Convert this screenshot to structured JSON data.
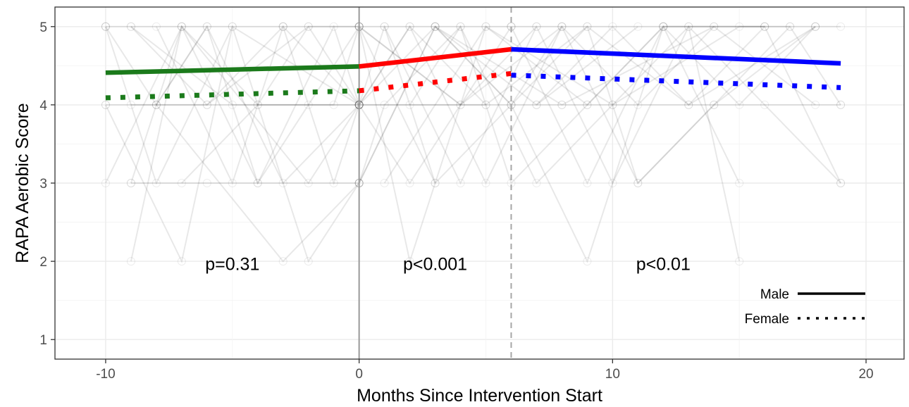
{
  "chart_data": {
    "type": "line",
    "xlabel": "Months Since Intervention Start",
    "ylabel": "RAPA Aerobic Score",
    "xlim": [
      -12,
      21.5
    ],
    "ylim": [
      0.75,
      5.25
    ],
    "x_ticks": [
      -10,
      0,
      10,
      20
    ],
    "x_tick_labels": [
      "-10",
      "0",
      "10",
      "20"
    ],
    "y_ticks": [
      1,
      2,
      3,
      4,
      5
    ],
    "y_tick_labels": [
      "1",
      "2",
      "3",
      "4",
      "5"
    ],
    "grid": true,
    "reference_lines": [
      {
        "x": 0,
        "style": "solid"
      },
      {
        "x": 6,
        "style": "dashed"
      }
    ],
    "series": [
      {
        "name": "Male",
        "segment": "pre",
        "color": "#1b7a1b",
        "style": "solid",
        "x": [
          -10,
          0
        ],
        "y": [
          4.41,
          4.49
        ]
      },
      {
        "name": "Male",
        "segment": "intervention",
        "color": "#ff0000",
        "style": "solid",
        "x": [
          0,
          6
        ],
        "y": [
          4.49,
          4.71
        ]
      },
      {
        "name": "Male",
        "segment": "post",
        "color": "#0000ff",
        "style": "solid",
        "x": [
          6,
          19
        ],
        "y": [
          4.71,
          4.53
        ]
      },
      {
        "name": "Female",
        "segment": "pre",
        "color": "#1b7a1b",
        "style": "dotted",
        "x": [
          -10,
          0
        ],
        "y": [
          4.09,
          4.18
        ]
      },
      {
        "name": "Female",
        "segment": "intervention",
        "color": "#ff0000",
        "style": "dotted",
        "x": [
          0,
          6
        ],
        "y": [
          4.18,
          4.4
        ]
      },
      {
        "name": "Female",
        "segment": "post",
        "color": "#0000ff",
        "style": "dotted",
        "x": [
          6,
          19
        ],
        "y": [
          4.38,
          4.22
        ]
      }
    ],
    "annotations": [
      {
        "text": "p=0.31",
        "x": -5,
        "y": 1.97
      },
      {
        "text": "p<0.001",
        "x": 3,
        "y": 1.97
      },
      {
        "text": "p<0.01",
        "x": 12,
        "y": 1.97
      }
    ],
    "legend": {
      "position": "bottom-right",
      "entries": [
        {
          "label": "Male",
          "style": "solid",
          "color": "#000000"
        },
        {
          "label": "Female",
          "style": "dotted",
          "color": "#000000"
        }
      ]
    },
    "background_trajectories": {
      "color": "#000000",
      "opacity": 0.09,
      "lines": [
        {
          "x": [
            -10,
            -3,
            0,
            6,
            16
          ],
          "y": [
            5,
            5,
            5,
            5,
            5
          ]
        },
        {
          "x": [
            -9,
            -2,
            0,
            8,
            19
          ],
          "y": [
            4,
            4,
            4,
            4,
            4
          ]
        },
        {
          "x": [
            -9,
            -6,
            0
          ],
          "y": [
            3,
            3,
            3
          ]
        },
        {
          "x": [
            -10,
            -7,
            -5,
            0
          ],
          "y": [
            4,
            2,
            5,
            4
          ]
        },
        {
          "x": [
            -9,
            -7,
            -4,
            0,
            3
          ],
          "y": [
            3,
            5,
            3,
            5,
            3
          ]
        },
        {
          "x": [
            -10,
            -8,
            -5,
            -2,
            0
          ],
          "y": [
            5,
            3,
            5,
            2,
            3
          ]
        },
        {
          "x": [
            -8,
            -6,
            -3,
            0,
            2,
            5
          ],
          "y": [
            4,
            5,
            3,
            4,
            5,
            4
          ]
        },
        {
          "x": [
            -9,
            -6,
            -3,
            -1,
            0
          ],
          "y": [
            5,
            4,
            5,
            3,
            4
          ]
        },
        {
          "x": [
            -10,
            -7,
            -4,
            -2,
            0
          ],
          "y": [
            3,
            5,
            4,
            5,
            5
          ]
        },
        {
          "x": [
            -9,
            -7,
            -2,
            0,
            2,
            6
          ],
          "y": [
            2,
            5,
            3,
            4,
            3,
            5
          ]
        },
        {
          "x": [
            -8,
            -5,
            -3,
            0,
            1,
            4,
            7
          ],
          "y": [
            5,
            3,
            5,
            4,
            5,
            3,
            5
          ]
        },
        {
          "x": [
            0,
            3,
            6,
            9,
            12,
            15
          ],
          "y": [
            3,
            5,
            4,
            2,
            5,
            3
          ]
        },
        {
          "x": [
            0,
            2,
            5,
            8,
            11,
            14,
            18
          ],
          "y": [
            4,
            5,
            3,
            5,
            4,
            5,
            4
          ]
        },
        {
          "x": [
            0,
            4,
            7,
            10,
            13,
            16,
            19
          ],
          "y": [
            5,
            4,
            5,
            3,
            5,
            4,
            3
          ]
        },
        {
          "x": [
            0,
            1,
            4,
            6,
            9,
            12,
            17
          ],
          "y": [
            3,
            4,
            5,
            3,
            4,
            5,
            5
          ]
        },
        {
          "x": [
            1,
            3,
            6,
            9,
            11,
            14,
            18
          ],
          "y": [
            5,
            3,
            4,
            5,
            3,
            4,
            5
          ]
        },
        {
          "x": [
            2,
            4,
            7,
            10,
            13,
            15
          ],
          "y": [
            4,
            5,
            3,
            4,
            5,
            2
          ]
        },
        {
          "x": [
            0,
            2,
            5,
            9,
            12,
            16
          ],
          "y": [
            5,
            2,
            5,
            4,
            5,
            5
          ]
        },
        {
          "x": [
            3,
            6,
            8,
            11,
            14,
            17,
            19
          ],
          "y": [
            5,
            4,
            5,
            3,
            4,
            5,
            4
          ]
        },
        {
          "x": [
            -10,
            -6,
            -2,
            0,
            3,
            7,
            11
          ],
          "y": [
            4,
            4,
            5,
            4,
            5,
            4,
            5
          ]
        },
        {
          "x": [
            -9,
            -5,
            -1,
            0,
            4,
            8
          ],
          "y": [
            5,
            4,
            4,
            5,
            4,
            5
          ]
        },
        {
          "x": [
            -7,
            -4,
            0,
            5,
            9,
            13,
            18
          ],
          "y": [
            3,
            4,
            4,
            4,
            5,
            4,
            5
          ]
        },
        {
          "x": [
            6,
            9,
            12,
            15,
            18
          ],
          "y": [
            5,
            3,
            5,
            4,
            5
          ]
        },
        {
          "x": [
            7,
            10,
            13,
            16,
            19
          ],
          "y": [
            4,
            5,
            4,
            5,
            3
          ]
        },
        {
          "x": [
            -10,
            -8,
            -6,
            -4,
            -1,
            0
          ],
          "y": [
            5,
            4,
            5,
            3,
            5,
            4
          ]
        },
        {
          "x": [
            -8,
            -3,
            0,
            3,
            8,
            14
          ],
          "y": [
            4,
            2,
            3,
            5,
            4,
            5
          ]
        },
        {
          "x": [
            1,
            5,
            10,
            15,
            19
          ],
          "y": [
            3,
            5,
            4,
            5,
            5
          ]
        }
      ]
    }
  }
}
